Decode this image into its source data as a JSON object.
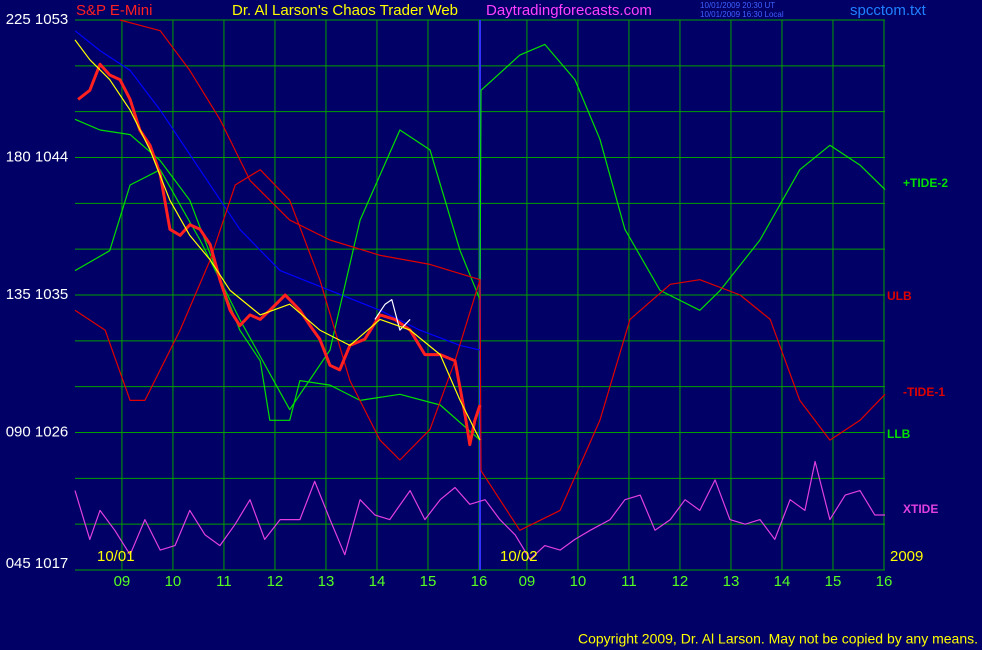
{
  "chart_data": {
    "type": "line",
    "instrument": "S&P E-Mini",
    "title": "Dr. Al Larson's Chaos Trader Web",
    "site": "Daytradingforecasts.com",
    "timestamps": [
      "10/01/2009 20:30 UT",
      "10/01/2009 16:30 Local"
    ],
    "file": "spcctom.txt",
    "date_labels": [
      "10/01",
      "10/02"
    ],
    "year": "2009",
    "copyright": "Copyright 2009, Dr. Al Larson. May not be copied by any means.",
    "grid": true,
    "grid_color": "#00a000",
    "xlim": [
      8.08,
      23.96
    ],
    "xticks": [
      {
        "value": 9,
        "label": "09"
      },
      10,
      11,
      12,
      13,
      14,
      15,
      16,
      {
        "value": 16.94,
        "label": "09"
      },
      {
        "value": 17.94,
        "label": "10"
      },
      {
        "value": 18.94,
        "label": "11"
      },
      {
        "value": 19.94,
        "label": "12"
      },
      {
        "value": 20.94,
        "label": "13"
      },
      {
        "value": 21.94,
        "label": "14"
      },
      {
        "value": 22.94,
        "label": "15"
      },
      {
        "value": 23.94,
        "label": "16"
      }
    ],
    "ylim": [
      1017,
      1053
    ],
    "yticks": [
      {
        "value": 1017,
        "label": "045 1017"
      },
      1020,
      1023,
      {
        "value": 1026,
        "label": "090 1026"
      },
      1029,
      1032,
      {
        "value": 1035,
        "label": "135 1035"
      },
      1038,
      1041,
      {
        "value": 1044,
        "label": "180 1044"
      },
      1047,
      1050,
      {
        "value": 1053,
        "label": "225 1053"
      }
    ],
    "series": [
      {
        "color": "#0000ff",
        "x": [
          8.08,
          8.57,
          9.16,
          9.75,
          10.53,
          11.31,
          12.1,
          13.08,
          14.06,
          14.84,
          15.63,
          16.02
        ],
        "values": [
          1052.3,
          1051.0,
          1049.7,
          1047.1,
          1043.2,
          1039.3,
          1036.6,
          1035.3,
          1034.0,
          1032.7,
          1031.7,
          1031.4
        ]
      },
      {
        "name": "+TIDE-2",
        "color": "#00e000",
        "x": [
          8.08,
          8.76,
          9.16,
          9.75,
          10.53,
          11.31,
          12.29,
          13.08,
          13.67,
          14.45,
          15.04,
          15.63,
          16.02,
          16.04,
          16.8,
          17.29,
          17.88,
          18.37,
          18.86,
          19.55,
          20.33,
          20.73,
          21.51,
          22.29,
          22.88,
          23.47,
          23.96
        ],
        "values": [
          1036.6,
          1037.9,
          1042.2,
          1043.2,
          1038.6,
          1033.4,
          1027.5,
          1031.4,
          1039.9,
          1045.8,
          1044.5,
          1037.9,
          1034.7,
          1048.4,
          1050.7,
          1051.4,
          1049.1,
          1045.2,
          1039.3,
          1035.3,
          1034.0,
          1035.3,
          1038.6,
          1043.2,
          1044.8,
          1043.5,
          1041.9
        ]
      },
      {
        "name": "LLB",
        "color": "#00e000",
        "x": [
          8.08,
          8.57,
          9.16,
          9.75,
          10.33,
          10.92,
          11.31,
          11.71,
          11.9,
          12.29,
          12.49,
          13.08,
          13.67,
          14.45,
          15.24,
          16.02
        ],
        "values": [
          1046.5,
          1045.8,
          1045.5,
          1043.8,
          1041.2,
          1036.0,
          1032.7,
          1030.7,
          1026.8,
          1026.8,
          1029.4,
          1029.1,
          1028.1,
          1028.5,
          1027.8,
          1025.5
        ]
      },
      {
        "name": "ULB",
        "color": "#e00000",
        "x": [
          8.96,
          9.75,
          10.33,
          10.92,
          11.51,
          12.29,
          13.08,
          14.06,
          15.04,
          16.02
        ],
        "values": [
          1053.0,
          1052.3,
          1049.7,
          1046.5,
          1042.5,
          1039.9,
          1038.6,
          1037.6,
          1037.0,
          1036.0
        ]
      },
      {
        "name": "-TIDE-1",
        "color": "#e00000",
        "x": [
          8.08,
          8.67,
          9.16,
          9.45,
          10.14,
          10.73,
          11.22,
          11.71,
          12.29,
          12.88,
          13.47,
          14.06,
          14.45,
          15.04,
          15.53,
          16.02,
          16.04,
          16.8,
          17.59,
          18.37,
          18.96,
          19.75,
          20.33,
          21.12,
          21.71,
          22.29,
          22.88,
          23.47,
          23.96
        ],
        "values": [
          1034.0,
          1032.7,
          1028.1,
          1028.1,
          1032.7,
          1037.3,
          1042.2,
          1043.2,
          1041.2,
          1036.0,
          1029.4,
          1025.5,
          1024.2,
          1026.2,
          1030.7,
          1036.0,
          1023.5,
          1019.6,
          1020.9,
          1026.8,
          1033.4,
          1035.7,
          1036.0,
          1035.0,
          1033.4,
          1028.1,
          1025.5,
          1026.8,
          1028.5
        ]
      },
      {
        "name": "XTIDE",
        "color": "#e040e0",
        "x": [
          8.08,
          8.37,
          8.57,
          8.86,
          9.16,
          9.45,
          9.75,
          10.04,
          10.33,
          10.63,
          10.92,
          11.22,
          11.51,
          11.8,
          12.1,
          12.49,
          12.78,
          13.08,
          13.37,
          13.67,
          13.96,
          14.25,
          14.65,
          14.94,
          15.24,
          15.53,
          15.82,
          16.12,
          16.41,
          16.71,
          17.0,
          17.29,
          17.59,
          17.88,
          18.18,
          18.57,
          18.86,
          19.16,
          19.45,
          19.75,
          20.04,
          20.33,
          20.63,
          20.92,
          21.22,
          21.51,
          21.8,
          22.1,
          22.39,
          22.59,
          22.88,
          23.18,
          23.47,
          23.76,
          23.96
        ],
        "values": [
          1022.2,
          1019.0,
          1020.9,
          1019.6,
          1018.0,
          1020.3,
          1018.3,
          1018.6,
          1020.9,
          1019.3,
          1018.6,
          1020.0,
          1021.6,
          1019.0,
          1020.3,
          1020.3,
          1022.8,
          1020.3,
          1018.0,
          1021.6,
          1020.6,
          1020.3,
          1022.2,
          1020.3,
          1021.6,
          1022.4,
          1021.3,
          1021.6,
          1020.3,
          1019.3,
          1017.7,
          1018.6,
          1018.3,
          1019.0,
          1019.6,
          1020.3,
          1021.6,
          1021.9,
          1019.6,
          1020.3,
          1021.6,
          1020.9,
          1022.9,
          1020.3,
          1020.0,
          1020.3,
          1019.0,
          1021.6,
          1020.9,
          1024.1,
          1020.3,
          1021.9,
          1022.2,
          1020.6,
          1020.6
        ]
      },
      {
        "color": "#ff2020",
        "x": [
          8.14,
          8.37,
          8.57,
          8.76,
          8.96,
          9.16,
          9.35,
          9.55,
          9.75,
          9.94,
          10.14,
          10.33,
          10.53,
          10.73,
          10.92,
          11.12,
          11.31,
          11.51,
          11.71,
          11.9,
          12.2,
          12.49,
          12.69,
          12.88,
          13.08,
          13.27,
          13.47,
          13.76,
          14.06,
          14.35,
          14.65,
          14.94,
          15.24,
          15.53,
          15.73,
          15.82,
          15.92,
          16.02
        ],
        "values": [
          1047.8,
          1048.4,
          1050.1,
          1049.4,
          1049.1,
          1047.8,
          1045.8,
          1044.8,
          1042.9,
          1039.3,
          1038.9,
          1039.6,
          1039.3,
          1038.3,
          1036.0,
          1034.0,
          1033.0,
          1033.7,
          1033.4,
          1034.0,
          1035.0,
          1034.0,
          1033.0,
          1032.1,
          1030.4,
          1030.1,
          1031.7,
          1032.1,
          1033.7,
          1033.4,
          1032.7,
          1031.1,
          1031.1,
          1030.7,
          1027.1,
          1025.2,
          1026.8,
          1027.8
        ]
      },
      {
        "color": "#ffffff",
        "x": [
          13.96,
          14.16,
          14.29,
          14.45,
          14.65
        ],
        "values": [
          1033.4,
          1034.4,
          1034.7,
          1032.7,
          1033.4
        ]
      },
      {
        "color": "#ffff00",
        "x": [
          8.08,
          8.37,
          8.76,
          9.16,
          9.55,
          9.94,
          10.33,
          10.73,
          11.12,
          11.71,
          12.29,
          12.88,
          13.47,
          14.06,
          14.65,
          15.24,
          15.63,
          16.02
        ],
        "values": [
          1051.7,
          1050.4,
          1049.1,
          1047.1,
          1044.5,
          1041.2,
          1038.9,
          1037.3,
          1035.3,
          1033.7,
          1034.4,
          1032.7,
          1031.7,
          1033.4,
          1032.7,
          1031.1,
          1028.1,
          1025.5
        ]
      }
    ]
  }
}
